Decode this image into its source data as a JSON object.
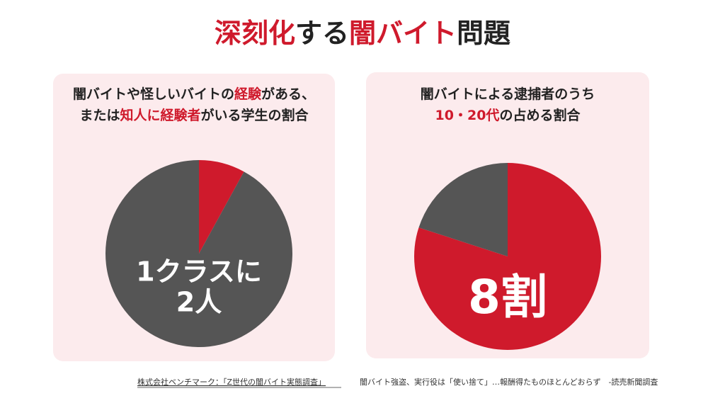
{
  "title": [
    {
      "text": "深刻化",
      "accent": true
    },
    {
      "text": "する",
      "accent": false
    },
    {
      "text": "闇バイト",
      "accent": true
    },
    {
      "text": "問題",
      "accent": false
    }
  ],
  "chart_data": [
    {
      "type": "pie",
      "caption": [
        [
          {
            "text": "闇バイトや怪しいバイトの",
            "accent": false
          },
          {
            "text": "経験",
            "accent": true
          },
          {
            "text": "がある、",
            "accent": false
          }
        ],
        [
          {
            "text": "または",
            "accent": false
          },
          {
            "text": "知人に経験者",
            "accent": true
          },
          {
            "text": "がいる学生の割合",
            "accent": false
          }
        ]
      ],
      "values": [
        8,
        92
      ],
      "colors": [
        "#cf1a2c",
        "#555555"
      ],
      "center_label": [
        "1クラスに",
        "2人"
      ]
    },
    {
      "type": "pie",
      "caption": [
        [
          {
            "text": "闇バイトによる逮捕者のうち",
            "accent": false
          }
        ],
        [
          {
            "text": "10・20代",
            "accent": true
          },
          {
            "text": "の占める割合",
            "accent": false
          }
        ]
      ],
      "values": [
        80,
        20
      ],
      "colors": [
        "#cf1a2c",
        "#555555"
      ],
      "center_label": [
        "8割"
      ]
    }
  ],
  "sources": [
    "株式会社ベンチマーク：「Z世代の闇バイト実態調査」",
    "闇バイト強盗、実行役は「使い捨て」…報酬得たものほとんどおらず　-読売新聞調査"
  ],
  "accent_color": "#cf1a2c"
}
